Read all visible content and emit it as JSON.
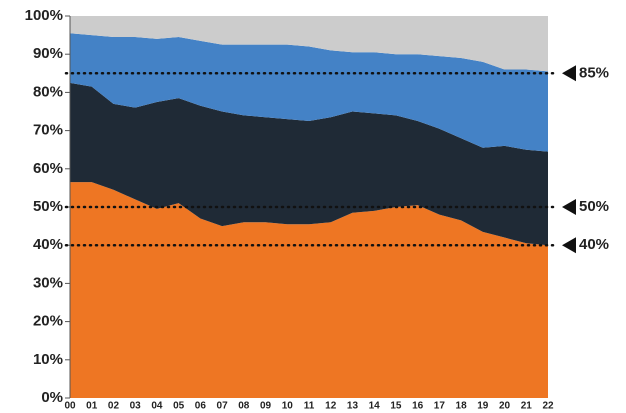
{
  "chart_data": {
    "type": "stacked_area",
    "categories": [
      "00",
      "01",
      "02",
      "03",
      "04",
      "05",
      "06",
      "07",
      "08",
      "09",
      "10",
      "11",
      "12",
      "13",
      "14",
      "15",
      "16",
      "17",
      "18",
      "19",
      "20",
      "21",
      "22"
    ],
    "series": [
      {
        "color": "#ee7623",
        "values": [
          56.5,
          56.5,
          54.5,
          52,
          49.5,
          51,
          47,
          45,
          46,
          46,
          45.5,
          45.5,
          46,
          48.5,
          49,
          50,
          50.5,
          48,
          46.5,
          43.5,
          42,
          40.5,
          40
        ]
      },
      {
        "color": "#1f2a36",
        "values": [
          26,
          25,
          22.5,
          24,
          28,
          27.5,
          29.5,
          30,
          28,
          27.5,
          27.5,
          27,
          27.5,
          26.5,
          25.5,
          24,
          22,
          22.5,
          21.5,
          22,
          24,
          24.5,
          24.5
        ]
      },
      {
        "color": "#4482c6",
        "values": [
          13,
          13.5,
          17.5,
          18.5,
          16.5,
          16,
          17,
          17.5,
          18.5,
          19,
          19.5,
          19.5,
          17.5,
          15.5,
          16,
          16,
          17.5,
          19,
          21,
          22.5,
          20,
          21,
          21
        ]
      },
      {
        "color": "#cccccc",
        "values": [
          4.5,
          5,
          5.5,
          5.5,
          6,
          5.5,
          6.5,
          7.5,
          7.5,
          7.5,
          7.5,
          8,
          9,
          9.5,
          9.5,
          10,
          10,
          10.5,
          11,
          12,
          14,
          14,
          14.5
        ]
      }
    ],
    "ylim": [
      0,
      100
    ],
    "yticks": [
      {
        "value": 0,
        "label": "0%"
      },
      {
        "value": 10,
        "label": "10%"
      },
      {
        "value": 20,
        "label": "20%"
      },
      {
        "value": 30,
        "label": "30%"
      },
      {
        "value": 40,
        "label": "40%"
      },
      {
        "value": 50,
        "label": "50%"
      },
      {
        "value": 60,
        "label": "60%"
      },
      {
        "value": 70,
        "label": "70%"
      },
      {
        "value": 80,
        "label": "80%"
      },
      {
        "value": 90,
        "label": "90%"
      },
      {
        "value": 100,
        "label": "100%"
      }
    ],
    "reference_lines": [
      {
        "value": 85,
        "label": "85%"
      },
      {
        "value": 50,
        "label": "50%"
      },
      {
        "value": 40,
        "label": "40%"
      }
    ]
  }
}
